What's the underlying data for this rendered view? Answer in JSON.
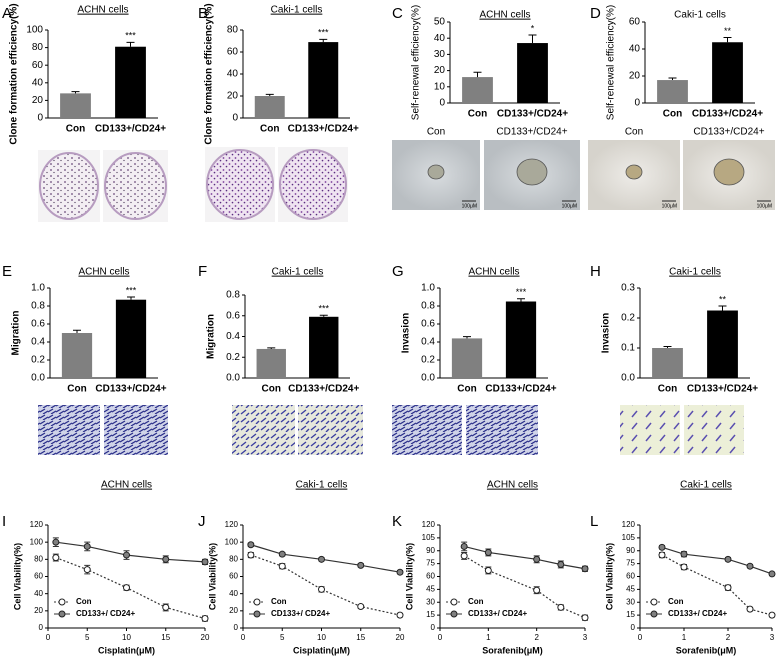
{
  "chart_data": [
    {
      "type": "bar",
      "panel": "A",
      "title": "ACHN cells",
      "ylabel": "Clone formation efficiency(%)",
      "categories": [
        "Con",
        "CD133+/CD24+"
      ],
      "values": [
        28,
        81
      ],
      "errors": [
        2,
        5
      ],
      "colors": [
        "#808080",
        "#000000"
      ],
      "annotation": "***",
      "ylim": [
        0,
        100
      ],
      "yticks": [
        0,
        20,
        40,
        60,
        80,
        100
      ]
    },
    {
      "type": "bar",
      "panel": "B",
      "title": "Caki-1 cells",
      "ylabel": "Clone formation efficiency(%)",
      "categories": [
        "Con",
        "CD133+/CD24+"
      ],
      "values": [
        20,
        69
      ],
      "errors": [
        1.5,
        2.5
      ],
      "colors": [
        "#808080",
        "#000000"
      ],
      "annotation": "***",
      "ylim": [
        0,
        80
      ],
      "yticks": [
        0,
        20,
        40,
        60,
        80
      ]
    },
    {
      "type": "bar",
      "panel": "C",
      "title": "ACHN cells",
      "ylabel": "Self-renewal efficiency(%)",
      "categories": [
        "Con",
        "CD133+/CD24+"
      ],
      "values": [
        16,
        37
      ],
      "errors": [
        3,
        5
      ],
      "colors": [
        "#808080",
        "#000000"
      ],
      "annotation": "*",
      "ylim": [
        0,
        50
      ],
      "yticks": [
        0,
        10,
        20,
        30,
        40,
        50
      ],
      "image_labels": [
        "Con",
        "CD133+/CD24+"
      ],
      "scale_label": "100μM"
    },
    {
      "type": "bar",
      "panel": "D",
      "title": "Caki-1 cells",
      "ylabel": "Self-renewal efficiency(%)",
      "categories": [
        "Con",
        "CD133+/CD24+"
      ],
      "values": [
        17,
        45
      ],
      "errors": [
        1.5,
        3.5
      ],
      "colors": [
        "#808080",
        "#000000"
      ],
      "annotation": "**",
      "ylim": [
        0,
        60
      ],
      "yticks": [
        0,
        20,
        40,
        60
      ],
      "image_labels": [
        "Con",
        "CD133+/CD24+"
      ],
      "scale_label": "100μM"
    },
    {
      "type": "bar",
      "panel": "E",
      "title": "ACHN cells",
      "ylabel": "Migration",
      "categories": [
        "Con",
        "CD133+/CD24+"
      ],
      "values": [
        0.5,
        0.87
      ],
      "errors": [
        0.03,
        0.03
      ],
      "colors": [
        "#808080",
        "#000000"
      ],
      "annotation": "***",
      "ylim": [
        0,
        1
      ],
      "yticks": [
        {
          "value": 0,
          "label": "0.0"
        },
        0.2,
        0.4,
        0.6,
        0.8,
        {
          "value": 1,
          "label": "1.0"
        }
      ]
    },
    {
      "type": "bar",
      "panel": "F",
      "title": "Caki-1 cells",
      "ylabel": "Migration",
      "categories": [
        "Con",
        "CD133+/CD24+"
      ],
      "values": [
        0.28,
        0.59
      ],
      "errors": [
        0.01,
        0.015
      ],
      "colors": [
        "#808080",
        "#000000"
      ],
      "annotation": "***",
      "ylim": [
        0,
        0.8
      ],
      "yticks": [
        {
          "value": 0,
          "label": "0.0"
        },
        0.2,
        0.4,
        0.6,
        0.8
      ]
    },
    {
      "type": "bar",
      "panel": "G",
      "title": "ACHN cells",
      "ylabel": "Invasion",
      "categories": [
        "Con",
        "CD133+/CD24+"
      ],
      "values": [
        0.44,
        0.85
      ],
      "errors": [
        0.02,
        0.03
      ],
      "colors": [
        "#808080",
        "#000000"
      ],
      "annotation": "***",
      "ylim": [
        0,
        1
      ],
      "yticks": [
        {
          "value": 0,
          "label": "0.0"
        },
        0.2,
        0.4,
        0.6,
        0.8,
        {
          "value": 1,
          "label": "1.0"
        }
      ]
    },
    {
      "type": "bar",
      "panel": "H",
      "title": "Caki-1 cells",
      "ylabel": "Invasion",
      "categories": [
        "Con",
        "CD133+/CD24+"
      ],
      "values": [
        0.1,
        0.225
      ],
      "errors": [
        0.005,
        0.015
      ],
      "colors": [
        "#808080",
        "#000000"
      ],
      "annotation": "**",
      "ylim": [
        0,
        0.3
      ],
      "yticks": [
        {
          "value": 0,
          "label": "0.0"
        },
        0.1,
        0.2,
        0.3
      ]
    },
    {
      "type": "line",
      "panel": "I",
      "title": "ACHN cells",
      "ylabel": "Cell Viability(%)",
      "xlabel": "Cisplatin(μM)",
      "x": [
        1,
        5,
        10,
        15,
        20
      ],
      "series": [
        {
          "name": "Con",
          "color": "#ffffff",
          "line_style": "dotted",
          "values": [
            82,
            68,
            47,
            24,
            11
          ],
          "errors": [
            4,
            5,
            3,
            4,
            3
          ]
        },
        {
          "name": "CD133+/ CD24+",
          "color": "#808080",
          "line_style": "solid",
          "values": [
            100,
            95,
            85,
            80,
            77
          ],
          "errors": [
            5,
            5,
            5,
            4,
            3
          ]
        }
      ],
      "xlim": [
        0,
        20
      ],
      "xticks": [
        0,
        5,
        10,
        15,
        20
      ],
      "ylim": [
        0,
        120
      ],
      "yticks": [
        0,
        20,
        40,
        60,
        80,
        100,
        120
      ],
      "legend": "lower left"
    },
    {
      "type": "line",
      "panel": "J",
      "title": "Caki-1 cells",
      "ylabel": "Cell Viability(%)",
      "xlabel": "Cisplatin(μM)",
      "x": [
        1,
        5,
        10,
        15,
        20
      ],
      "series": [
        {
          "name": "Con",
          "color": "#ffffff",
          "line_style": "dotted",
          "values": [
            85,
            72,
            45,
            25,
            15
          ],
          "errors": [
            3,
            3,
            3,
            2,
            2
          ]
        },
        {
          "name": "CD133+/ CD24+",
          "color": "#808080",
          "line_style": "solid",
          "values": [
            97,
            86,
            80,
            73,
            65
          ],
          "errors": [
            2,
            2,
            2,
            2,
            2
          ]
        }
      ],
      "xlim": [
        0,
        20
      ],
      "xticks": [
        0,
        5,
        10,
        15,
        20
      ],
      "ylim": [
        0,
        120
      ],
      "yticks": [
        0,
        20,
        40,
        60,
        80,
        100,
        120
      ],
      "legend": "lower left"
    },
    {
      "type": "line",
      "panel": "K",
      "title": "ACHN cells",
      "ylabel": "Cell Viability(%)",
      "xlabel": "Sorafenib(μM)",
      "x": [
        0.5,
        1,
        2,
        2.5,
        3
      ],
      "series": [
        {
          "name": "Con",
          "color": "#ffffff",
          "line_style": "dotted",
          "values": [
            84,
            67,
            44,
            24,
            12
          ],
          "errors": [
            4,
            4,
            4,
            3,
            3
          ]
        },
        {
          "name": "CD133+/ CD24+",
          "color": "#808080",
          "line_style": "solid",
          "values": [
            95,
            88,
            80,
            74,
            69
          ],
          "errors": [
            5,
            4,
            4,
            4,
            3
          ]
        }
      ],
      "xlim": [
        0,
        3
      ],
      "xticks": [
        0,
        1,
        2,
        3
      ],
      "ylim": [
        0,
        120
      ],
      "yticks": [
        0,
        15,
        30,
        45,
        60,
        75,
        90,
        105,
        120
      ],
      "legend": "lower left"
    },
    {
      "type": "line",
      "panel": "L",
      "title": "Caki-1 cells",
      "ylabel": "Cell Viability(%)",
      "xlabel": "Sorafenib(μM)",
      "x": [
        0.5,
        1,
        2,
        2.5,
        3
      ],
      "series": [
        {
          "name": "Con",
          "color": "#ffffff",
          "line_style": "dotted",
          "values": [
            85,
            71,
            47,
            22,
            15
          ],
          "errors": [
            3,
            3,
            3,
            2,
            2
          ]
        },
        {
          "name": "CD133+/ CD24+",
          "color": "#808080",
          "line_style": "solid",
          "values": [
            94,
            86,
            80,
            72,
            63
          ],
          "errors": [
            2,
            3,
            2,
            2,
            2
          ]
        }
      ],
      "xlim": [
        0,
        3
      ],
      "xticks": [
        0,
        1,
        2,
        3
      ],
      "ylim": [
        0,
        120
      ],
      "yticks": [
        0,
        15,
        30,
        45,
        60,
        75,
        90,
        105,
        120
      ],
      "legend": "lower left"
    }
  ]
}
